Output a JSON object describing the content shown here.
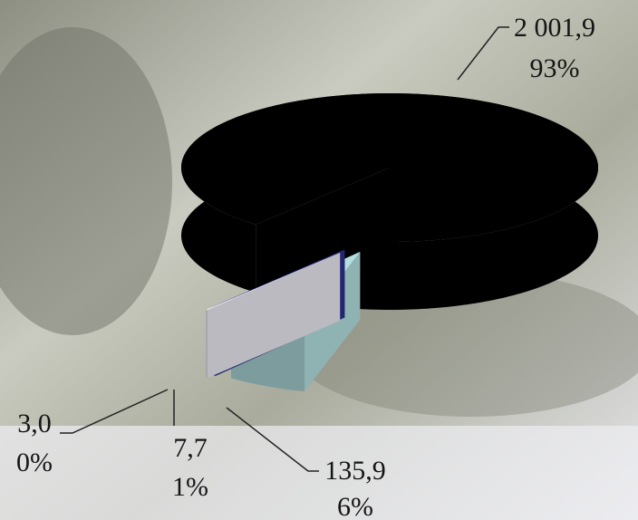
{
  "chart_data": {
    "type": "pie",
    "values": [
      2001.9,
      135.9,
      7.7,
      3.0
    ],
    "value_labels": [
      "2 001,9",
      "135,9",
      "7,7",
      "3,0"
    ],
    "percent_labels": [
      {
        "value": 93,
        "label": "93%"
      },
      {
        "value": 6,
        "label": "6%"
      },
      {
        "value": 1,
        "label": "1%"
      },
      {
        "value": 0,
        "label": "0%"
      }
    ],
    "colors": [
      "#000000",
      "#b3dfe0",
      "#2b2f8c",
      "#e8e8f0"
    ]
  }
}
